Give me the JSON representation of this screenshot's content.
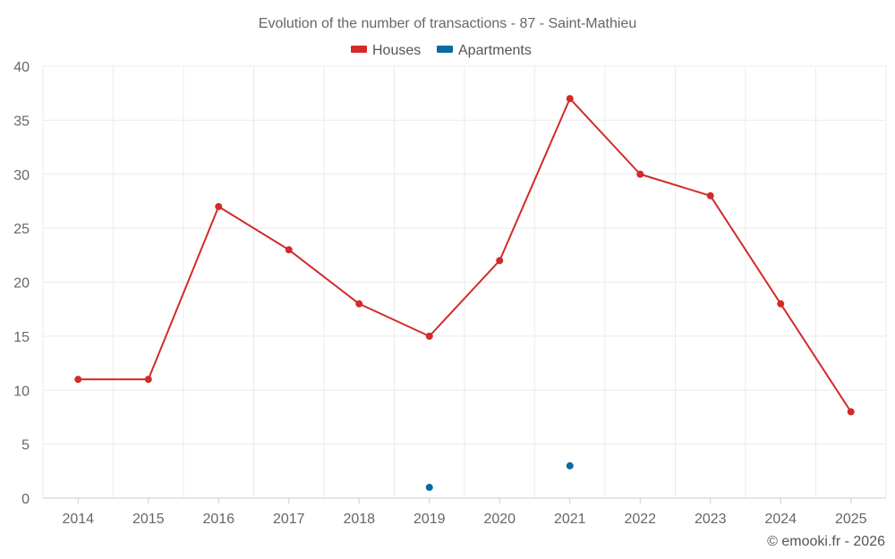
{
  "chart_data": {
    "type": "line",
    "title": "Evolution of the number of transactions - 87 - Saint-Mathieu",
    "categories": [
      "2014",
      "2015",
      "2016",
      "2017",
      "2018",
      "2019",
      "2020",
      "2021",
      "2022",
      "2023",
      "2024",
      "2025"
    ],
    "series": [
      {
        "name": "Houses",
        "color": "#d32a2a",
        "values": [
          11,
          11,
          27,
          23,
          18,
          15,
          22,
          37,
          30,
          28,
          18,
          8
        ]
      },
      {
        "name": "Apartments",
        "color": "#0a6aa1",
        "values": [
          null,
          null,
          null,
          null,
          null,
          1,
          null,
          3,
          null,
          null,
          null,
          null
        ]
      }
    ],
    "ylim": [
      0,
      40
    ],
    "yticks": [
      0,
      5,
      10,
      15,
      20,
      25,
      30,
      35,
      40
    ],
    "xlabel": "",
    "ylabel": "",
    "grid": true,
    "legend_position": "top-center"
  },
  "credit": "© emooki.fr - 2026"
}
